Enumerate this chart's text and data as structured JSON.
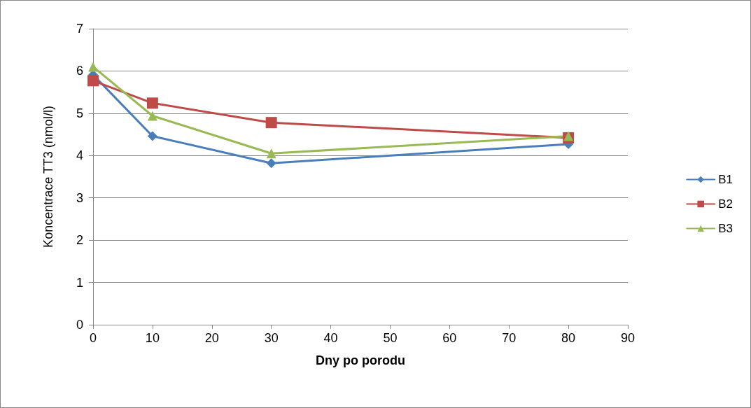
{
  "chart_data": {
    "type": "line",
    "xlabel": "Dny po porodu",
    "ylabel": "Koncentrace TT3 (nmol/l)",
    "x": [
      0,
      10,
      30,
      80
    ],
    "xlim": [
      0,
      90
    ],
    "xticks": [
      0,
      10,
      20,
      30,
      40,
      50,
      60,
      70,
      80,
      90
    ],
    "ylim": [
      0,
      7
    ],
    "yticks": [
      0,
      1,
      2,
      3,
      4,
      5,
      6,
      7
    ],
    "grid": "y",
    "legend": "right",
    "line_style": "solid",
    "series": [
      {
        "name": "B1",
        "color": "#4a7ebb",
        "marker": "diamond",
        "values": [
          5.91,
          4.46,
          3.82,
          4.27
        ]
      },
      {
        "name": "B2",
        "color": "#be4b48",
        "marker": "square",
        "values": [
          5.77,
          5.24,
          4.78,
          4.42
        ]
      },
      {
        "name": "B3",
        "color": "#98b954",
        "marker": "triangle",
        "values": [
          6.1,
          4.94,
          4.05,
          4.46
        ]
      }
    ]
  }
}
